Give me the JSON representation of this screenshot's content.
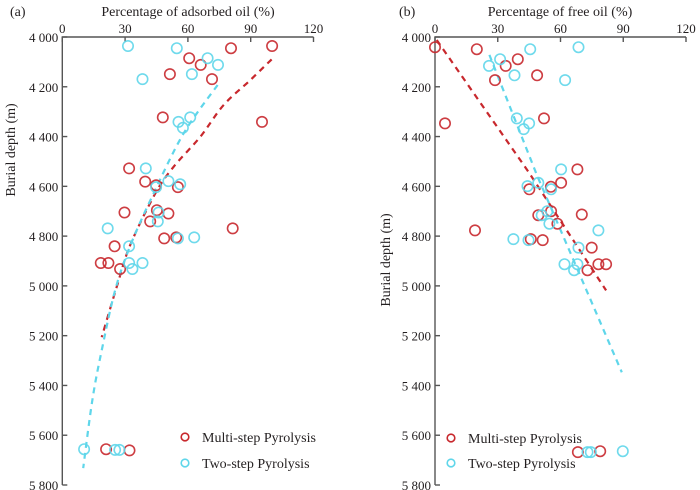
{
  "colors": {
    "multi": "#c8282d",
    "two": "#5fd6ea"
  },
  "chart_data": [
    {
      "type": "scatter",
      "panel_label": "(a)",
      "title": "",
      "xlabel": "Percentage of adsorbed oil (%)",
      "ylabel": "Burial depth (m)",
      "xlim": [
        0,
        120
      ],
      "ylim": [
        5800,
        4000
      ],
      "x_ticks": [
        "0",
        "30",
        "60",
        "90",
        "120"
      ],
      "x_tick_values": [
        0,
        30,
        60,
        90,
        120
      ],
      "y_ticks": [
        "4 000",
        "4 200",
        "4 400",
        "4 600",
        "4 800",
        "5 000",
        "5 200",
        "5 400",
        "5 600",
        "5 800"
      ],
      "y_tick_values": [
        4000,
        4200,
        4400,
        4600,
        4800,
        5000,
        5200,
        5400,
        5600,
        5800
      ],
      "x_axis_position": "top",
      "grid": false,
      "legend": {
        "placement": "bottom-right",
        "entries": [
          "Multi-step Pyrolysis",
          "Two-step Pyrolysis"
        ]
      },
      "series": [
        {
          "name": "Multi-step Pyrolysis",
          "color_key": "multi",
          "points": [
            [
              100.2,
              4036
            ],
            [
              80.6,
              4045
            ],
            [
              60.6,
              4085
            ],
            [
              66.1,
              4112
            ],
            [
              51.4,
              4149
            ],
            [
              71.5,
              4169
            ],
            [
              48.0,
              4323
            ],
            [
              95.4,
              4341
            ],
            [
              31.9,
              4528
            ],
            [
              39.6,
              4581
            ],
            [
              44.8,
              4596
            ],
            [
              55.2,
              4603
            ],
            [
              29.7,
              4705
            ],
            [
              45.2,
              4696
            ],
            [
              50.7,
              4709
            ],
            [
              42.0,
              4741
            ],
            [
              81.4,
              4769
            ],
            [
              48.7,
              4809
            ],
            [
              54.4,
              4805
            ],
            [
              25.0,
              4841
            ],
            [
              18.4,
              4908
            ],
            [
              22.0,
              4908
            ],
            [
              27.6,
              4932
            ],
            [
              20.9,
              5656
            ],
            [
              32.1,
              5661
            ]
          ],
          "trend": [
            [
              100,
              4090
            ],
            [
              89.8,
              4173
            ],
            [
              77,
              4274
            ],
            [
              65.9,
              4401
            ],
            [
              53.1,
              4522
            ],
            [
              44.4,
              4629
            ],
            [
              32.4,
              4837
            ],
            [
              26,
              5004
            ],
            [
              18.8,
              5206
            ]
          ]
        },
        {
          "name": "Two-step Pyrolysis",
          "color_key": "two",
          "points": [
            [
              31.4,
              4036
            ],
            [
              54.7,
              4045
            ],
            [
              69.4,
              4085
            ],
            [
              74.4,
              4112
            ],
            [
              61.9,
              4149
            ],
            [
              38.3,
              4169
            ],
            [
              55.5,
              4341
            ],
            [
              61.1,
              4323
            ],
            [
              57.6,
              4365
            ],
            [
              39.9,
              4528
            ],
            [
              50.7,
              4579
            ],
            [
              44.8,
              4603
            ],
            [
              56.3,
              4592
            ],
            [
              46.0,
              4705
            ],
            [
              45.6,
              4741
            ],
            [
              21.7,
              4769
            ],
            [
              55.2,
              4809
            ],
            [
              63.0,
              4805
            ],
            [
              31.9,
              4841
            ],
            [
              31.9,
              4908
            ],
            [
              38.3,
              4908
            ],
            [
              33.5,
              4932
            ],
            [
              10.4,
              5656
            ],
            [
              25.2,
              5659
            ],
            [
              27.3,
              5659
            ]
          ],
          "trend": [
            [
              74.2,
              4193
            ],
            [
              57.9,
              4388
            ],
            [
              42.8,
              4643
            ],
            [
              32.4,
              4840
            ],
            [
              25.2,
              5018
            ],
            [
              19.3,
              5240
            ],
            [
              14.5,
              5450
            ],
            [
              10.0,
              5732
            ]
          ]
        }
      ]
    },
    {
      "type": "scatter",
      "panel_label": "(b)",
      "title": "",
      "xlabel": "Percentage of free oil (%)",
      "ylabel": "Burial depth (m)",
      "xlim": [
        0,
        120
      ],
      "ylim": [
        5800,
        4000
      ],
      "x_ticks": [
        "0",
        "30",
        "60",
        "90",
        "120"
      ],
      "x_tick_values": [
        0,
        30,
        60,
        90,
        120
      ],
      "y_ticks": [
        "4 000",
        "4 200",
        "4 400",
        "4 600",
        "4 800",
        "5 000",
        "5 200",
        "5 400",
        "5 600",
        "5 800"
      ],
      "y_tick_values": [
        4000,
        4200,
        4400,
        4600,
        4800,
        5000,
        5200,
        5400,
        5600,
        5800
      ],
      "x_axis_position": "top",
      "grid": false,
      "legend": {
        "placement": "bottom-left",
        "entries": [
          "Multi-step Pyrolysis",
          "Two-step Pyrolysis"
        ]
      },
      "series": [
        {
          "name": "Multi-step Pyrolysis",
          "color_key": "multi",
          "points": [
            [
              0,
              4041
            ],
            [
              20.0,
              4049
            ],
            [
              39.6,
              4089
            ],
            [
              33.8,
              4116
            ],
            [
              48.8,
              4154
            ],
            [
              28.7,
              4173
            ],
            [
              52.1,
              4327
            ],
            [
              4.8,
              4347
            ],
            [
              68.1,
              4532
            ],
            [
              60.3,
              4586
            ],
            [
              45.1,
              4612
            ],
            [
              55.4,
              4602
            ],
            [
              55.5,
              4700
            ],
            [
              49.4,
              4716
            ],
            [
              70.2,
              4713
            ],
            [
              58.5,
              4750
            ],
            [
              19.1,
              4777
            ],
            [
              45.8,
              4812
            ],
            [
              51.5,
              4816
            ],
            [
              74.9,
              4846
            ],
            [
              78.1,
              4913
            ],
            [
              81.8,
              4913
            ],
            [
              72.9,
              4937
            ],
            [
              68.3,
              5668
            ],
            [
              79.0,
              5664
            ]
          ],
          "trend": [
            [
              0.8,
              4012
            ],
            [
              44.7,
              4542
            ],
            [
              81.8,
              5018
            ]
          ]
        },
        {
          "name": "Two-step Pyrolysis",
          "color_key": "two",
          "points": [
            [
              45.5,
              4049
            ],
            [
              68.6,
              4041
            ],
            [
              31.1,
              4089
            ],
            [
              25.8,
              4116
            ],
            [
              38.0,
              4154
            ],
            [
              62.2,
              4173
            ],
            [
              39.1,
              4327
            ],
            [
              45.0,
              4347
            ],
            [
              42.4,
              4370
            ],
            [
              60.3,
              4532
            ],
            [
              49.4,
              4586
            ],
            [
              44.2,
              4599
            ],
            [
              55.5,
              4612
            ],
            [
              53.7,
              4700
            ],
            [
              51.0,
              4716
            ],
            [
              54.7,
              4750
            ],
            [
              78.1,
              4777
            ],
            [
              37.5,
              4812
            ],
            [
              44.7,
              4816
            ],
            [
              68.6,
              4846
            ],
            [
              61.9,
              4913
            ],
            [
              68.1,
              4913
            ],
            [
              66.5,
              4937
            ],
            [
              72.9,
              5668
            ],
            [
              74.5,
              5668
            ],
            [
              89.8,
              5664
            ]
          ],
          "trend": [
            [
              26,
              4072
            ],
            [
              48.7,
              4555
            ],
            [
              89.3,
              5347
            ]
          ]
        }
      ]
    }
  ]
}
